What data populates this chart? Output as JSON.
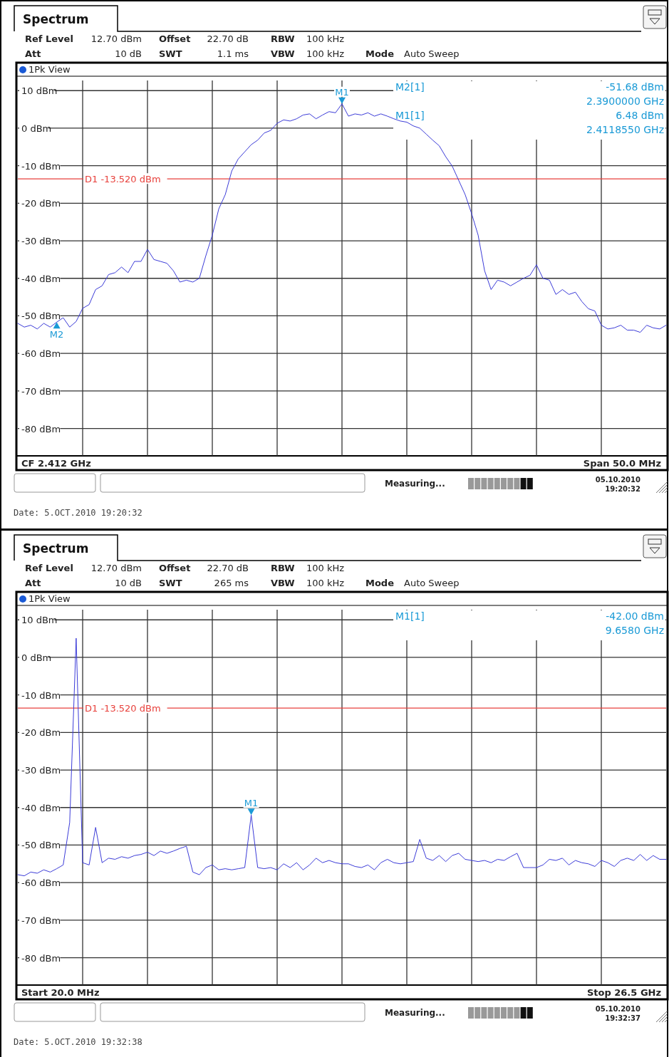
{
  "chart_data": [
    {
      "type": "line",
      "title": "Spectrum",
      "categories": [
        null,
        null,
        null,
        null,
        null,
        null,
        null,
        null,
        null,
        null,
        null,
        null,
        null,
        null,
        null,
        null,
        null,
        null,
        null,
        null,
        null,
        null,
        null,
        null,
        null,
        null,
        null,
        null,
        null,
        null,
        null,
        null,
        null,
        null,
        null,
        null,
        null,
        null,
        null,
        null,
        null,
        null,
        null,
        null,
        null,
        null,
        null,
        null,
        null,
        null,
        null,
        null,
        null,
        null,
        null,
        null,
        null,
        null,
        null,
        null,
        null,
        null,
        null,
        null,
        null,
        null,
        null,
        null,
        null,
        null,
        null,
        null,
        null,
        null,
        null,
        null,
        null,
        null,
        null,
        null,
        null,
        null,
        null,
        null,
        null,
        null,
        null,
        null,
        null,
        null,
        null,
        null,
        null,
        null,
        null,
        null,
        null,
        null,
        null,
        null,
        null
      ],
      "series": [
        {
          "color": "#3c3cd8",
          "values": [
            -52,
            -53,
            -52.5,
            -53.5,
            -52,
            -53,
            -51.68,
            -50.5,
            -53,
            -51.5,
            -48,
            -47,
            -43,
            -42,
            -39,
            -38.5,
            -37,
            -38.5,
            -35.5,
            -35.5,
            -32.3,
            -35,
            -35.5,
            -36,
            -38,
            -41,
            -40.5,
            -41,
            -40,
            -34,
            -28.5,
            -21.5,
            -17.7,
            -11.4,
            -8.2,
            -6.3,
            -4.4,
            -3.2,
            -1.3,
            -0.6,
            1.3,
            2.2,
            1.9,
            2.5,
            3.5,
            3.8,
            2.5,
            3.5,
            4.4,
            4.1,
            6.48,
            3.2,
            3.8,
            3.5,
            4.1,
            3.2,
            3.8,
            3.2,
            2.5,
            1.9,
            1.6,
            0.6,
            0,
            -1.6,
            -3.2,
            -4.7,
            -7.6,
            -10.1,
            -13.9,
            -17.7,
            -22.8,
            -28.5,
            -38,
            -43,
            -40.5,
            -41,
            -42,
            -41,
            -40,
            -39.2,
            -36.4,
            -40,
            -40.5,
            -44.3,
            -43,
            -44.3,
            -43.7,
            -46.2,
            -48.1,
            -48.7,
            -52.5,
            -53.5,
            -53.2,
            -52.5,
            -53.8,
            -53.8,
            -54.4,
            -52.5,
            -53.2,
            -53.5,
            -52.5
          ]
        }
      ],
      "ylim": [
        -87.3,
        12.7
      ],
      "yticks": [
        {
          "value": 10,
          "label": "10 dBm"
        },
        {
          "value": 0,
          "label": "0 dBm"
        },
        {
          "value": -10,
          "label": "-10 dBm"
        },
        {
          "value": -20,
          "label": "-20 dBm"
        },
        {
          "value": -30,
          "label": "-30 dBm"
        },
        {
          "value": -40,
          "label": "-40 dBm"
        },
        {
          "value": -50,
          "label": "-50 dBm"
        },
        {
          "value": -60,
          "label": "-60 dBm"
        },
        {
          "value": -70,
          "label": "-70 dBm"
        },
        {
          "value": -80,
          "label": "-80 dBm"
        }
      ],
      "grid": true,
      "ref_lines": [
        {
          "axis": "y",
          "value": -13.52,
          "label": "D1 -13.520 dBm",
          "color": "#e8413c"
        }
      ],
      "annotations": [
        "Ref Level",
        "12.70 dBm",
        "Offset",
        "22.70 dB",
        "RBW",
        "100 kHz",
        "Att",
        "10 dB",
        "SWT",
        "1.1 ms",
        "VBW",
        "100 kHz",
        "Mode",
        "Auto Sweep",
        "1Pk View",
        "CF 2.412 GHz",
        "Span 50.0 MHz",
        "Measuring...",
        "05.10.2010",
        "19:20:32",
        "Date: 5.OCT.2010  19:20:32",
        "M2[1]",
        "-51.68 dBm",
        "2.3900000 GHz",
        "M1[1]",
        "6.48 dBm",
        "2.4118550 GHz",
        {
          "text": "M1",
          "y": 6.48
        },
        {
          "text": "M2",
          "y": -51.68
        }
      ]
    },
    {
      "type": "line",
      "title": "Spectrum",
      "categories": [
        null,
        null,
        null,
        null,
        null,
        null,
        null,
        null,
        null,
        null,
        null,
        null,
        null,
        null,
        null,
        null,
        null,
        null,
        null,
        null,
        null,
        null,
        null,
        null,
        null,
        null,
        null,
        null,
        null,
        null,
        null,
        null,
        null,
        null,
        null,
        null,
        null,
        null,
        null,
        null,
        null,
        null,
        null,
        null,
        null,
        null,
        null,
        null,
        null,
        null,
        null,
        null,
        null,
        null,
        null,
        null,
        null,
        null,
        null,
        null,
        null,
        null,
        null,
        null,
        null,
        null,
        null,
        null,
        null,
        null,
        null,
        null,
        null,
        null,
        null,
        null,
        null,
        null,
        null,
        null,
        null,
        null,
        null,
        null,
        null,
        null,
        null,
        null,
        null,
        null,
        null,
        null,
        null,
        null,
        null,
        null,
        null,
        null,
        null,
        null,
        null
      ],
      "series": [
        {
          "color": "#3c3cd8",
          "values": [
            -57.9,
            -58.2,
            -57.2,
            -57.5,
            -56.6,
            -57.2,
            -56.3,
            -55.3,
            -44,
            5.1,
            -54.7,
            -55.3,
            -45.3,
            -54.7,
            -53.5,
            -53.8,
            -53.1,
            -53.5,
            -52.8,
            -52.5,
            -51.9,
            -52.8,
            -51.6,
            -52.2,
            -51.6,
            -50.9,
            -50.3,
            -57.2,
            -57.9,
            -56,
            -55.3,
            -56.6,
            -56.3,
            -56.6,
            -56.3,
            -56,
            -42,
            -56,
            -56.3,
            -56,
            -56.6,
            -55,
            -56,
            -54.7,
            -56.6,
            -55.3,
            -53.5,
            -54.7,
            -54.1,
            -54.7,
            -55,
            -55,
            -55.7,
            -56,
            -55.3,
            -56.6,
            -54.7,
            -53.8,
            -54.7,
            -55,
            -54.7,
            -54.4,
            -48.5,
            -53.5,
            -54.1,
            -52.8,
            -54.4,
            -52.8,
            -52.2,
            -53.8,
            -54.1,
            -54.4,
            -54.1,
            -54.7,
            -53.8,
            -54.1,
            -53.1,
            -52.2,
            -56,
            -56,
            -56,
            -55.3,
            -53.8,
            -54.1,
            -53.5,
            -55.3,
            -54.1,
            -54.7,
            -55,
            -55.7,
            -54.1,
            -54.7,
            -55.7,
            -54.1,
            -53.5,
            -54.1,
            -52.5,
            -54.1,
            -52.8,
            -53.8,
            -53.8
          ]
        }
      ],
      "ylim": [
        -87.3,
        12.7
      ],
      "yticks": [
        {
          "value": 10,
          "label": "10 dBm"
        },
        {
          "value": 0,
          "label": "0 dBm"
        },
        {
          "value": -10,
          "label": "-10 dBm"
        },
        {
          "value": -20,
          "label": "-20 dBm"
        },
        {
          "value": -30,
          "label": "-30 dBm"
        },
        {
          "value": -40,
          "label": "-40 dBm"
        },
        {
          "value": -50,
          "label": "-50 dBm"
        },
        {
          "value": -60,
          "label": "-60 dBm"
        },
        {
          "value": -70,
          "label": "-70 dBm"
        },
        {
          "value": -80,
          "label": "-80 dBm"
        }
      ],
      "grid": true,
      "ref_lines": [
        {
          "axis": "y",
          "value": -13.52,
          "label": "D1 -13.520 dBm",
          "color": "#e8413c"
        }
      ],
      "annotations": [
        "Ref Level",
        "12.70 dBm",
        "Offset",
        "22.70 dB",
        "RBW",
        "100 kHz",
        "Att",
        "10 dB",
        "SWT",
        "265 ms",
        "VBW",
        "100 kHz",
        "Mode",
        "Auto Sweep",
        "1Pk View",
        "Start 20.0 MHz",
        "Stop 26.5 GHz",
        "Measuring...",
        "05.10.2010",
        "19:32:37",
        "Date: 5.OCT.2010  19:32:38",
        "M1[1]",
        "-42.00 dBm",
        "9.6580 GHz",
        {
          "text": "M1",
          "y": -42
        }
      ]
    }
  ]
}
